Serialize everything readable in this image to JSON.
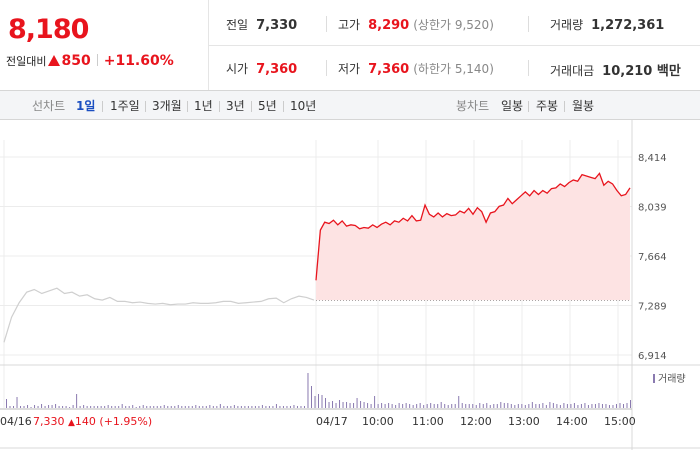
{
  "header": {
    "price": "8,180",
    "change_label": "전일대비",
    "change_amount": "850",
    "change_percent": "+11.60%",
    "stats": {
      "prev_close_label": "전일",
      "prev_close": "7,330",
      "high_label": "고가",
      "high": "8,290",
      "upper_limit": "(상한가 9,520)",
      "volume_label": "거래량",
      "volume": "1,272,361",
      "open_label": "시가",
      "open": "7,360",
      "low_label": "저가",
      "low": "7,360",
      "lower_limit": "(하한가 5,140)",
      "amount_label": "거래대금",
      "amount": "10,210 백만"
    }
  },
  "tabs": {
    "line_label": "선차트",
    "line_items": [
      "1일",
      "1주일",
      "3개월",
      "1년",
      "3년",
      "5년",
      "10년"
    ],
    "candle_label": "봉차트",
    "candle_items": [
      "일봉",
      "주봉",
      "월봉"
    ]
  },
  "chart_data": {
    "type": "area",
    "y_ticks": [
      "8,414",
      "8,039",
      "7,664",
      "7,289",
      "6,914"
    ],
    "ylim": [
      6914,
      8414
    ],
    "baseline": 7330,
    "x_labels": [
      "04/16",
      "04/17",
      "10:00",
      "11:00",
      "12:00",
      "13:00",
      "14:00",
      "15:00"
    ],
    "prev_day": {
      "date": "04/16",
      "close": "7,330",
      "change": "140",
      "change_pct": "(+1.95%)"
    },
    "prev_day_series": [
      7010,
      7200,
      7310,
      7390,
      7410,
      7380,
      7400,
      7420,
      7380,
      7390,
      7360,
      7370,
      7340,
      7330,
      7350,
      7320,
      7320,
      7310,
      7315,
      7305,
      7300,
      7305,
      7295,
      7300,
      7300,
      7310,
      7305,
      7305,
      7310,
      7320,
      7320,
      7305,
      7310,
      7315,
      7320,
      7340,
      7345,
      7310,
      7340,
      7360,
      7350,
      7330
    ],
    "today_series": [
      7480,
      7860,
      7920,
      7910,
      7935,
      7900,
      7930,
      7890,
      7900,
      7895,
      7870,
      7880,
      7875,
      7900,
      7880,
      7905,
      7920,
      7900,
      7930,
      7920,
      7950,
      7930,
      7970,
      7930,
      7935,
      8050,
      7980,
      7960,
      7990,
      7960,
      7985,
      7970,
      7975,
      8005,
      7990,
      8025,
      7980,
      8030,
      8000,
      7920,
      7990,
      8000,
      8040,
      8050,
      8100,
      8060,
      8090,
      8120,
      8150,
      8120,
      8160,
      8130,
      8160,
      8140,
      8175,
      8180,
      8210,
      8190,
      8220,
      8240,
      8230,
      8280,
      8270,
      8260,
      8250,
      8290,
      8200,
      8230,
      8210,
      8160,
      8120,
      8130,
      8180
    ],
    "volume_label": "거래량",
    "volume_series": [
      9,
      2,
      2,
      11,
      2,
      2,
      3,
      1,
      3,
      2,
      4,
      2,
      3,
      3,
      4,
      2,
      2,
      2,
      1,
      3,
      14,
      2,
      3,
      2,
      2,
      2,
      2,
      2,
      2,
      3,
      2,
      2,
      2,
      4,
      2,
      2,
      3,
      1,
      2,
      3,
      2,
      2,
      2,
      2,
      2,
      3,
      2,
      2,
      2,
      3,
      2,
      2,
      2,
      2,
      3,
      2,
      2,
      2,
      3,
      2,
      2,
      4,
      2,
      2,
      2,
      3,
      2,
      2,
      2,
      2,
      2,
      2,
      2,
      3,
      2,
      2,
      2,
      4,
      2,
      2,
      2,
      2,
      3,
      2,
      2,
      2,
      35,
      22,
      12,
      14,
      13,
      10,
      6,
      7,
      5,
      8,
      6,
      6,
      5,
      5,
      10,
      7,
      6,
      5,
      4,
      12,
      4,
      5,
      4,
      5,
      4,
      3,
      5,
      4,
      5,
      4,
      3,
      4,
      5,
      3,
      4,
      5,
      4,
      4,
      6,
      4,
      3,
      4,
      4,
      12,
      5,
      4,
      4,
      4,
      3,
      5,
      4,
      5,
      3,
      4,
      4,
      6,
      5,
      5,
      4,
      3,
      4,
      4,
      3,
      4,
      6,
      4,
      4,
      5,
      3,
      6,
      5,
      4,
      3,
      5,
      4,
      4,
      5,
      3,
      4,
      5,
      3,
      4,
      4,
      5,
      4,
      4,
      3,
      3,
      4,
      5,
      4,
      5,
      8
    ]
  }
}
